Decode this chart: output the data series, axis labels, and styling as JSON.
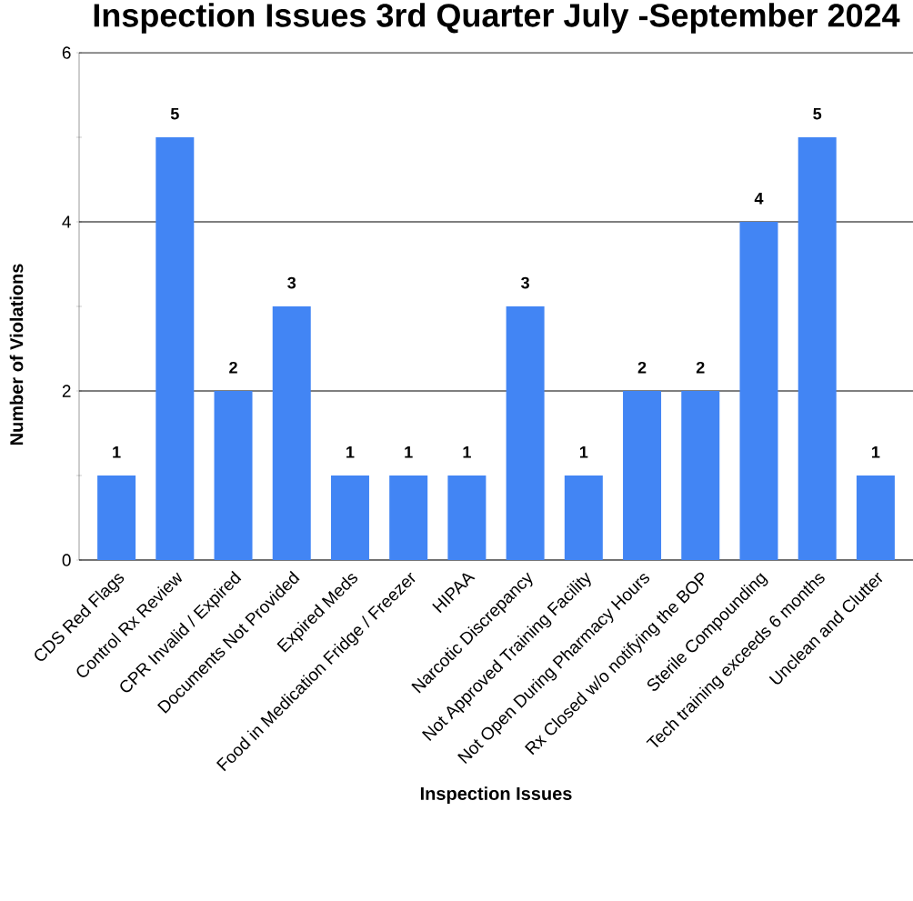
{
  "chart_data": {
    "type": "bar",
    "title": "Inspection Issues 3rd Quarter July -September 2024",
    "xlabel": "Inspection Issues",
    "ylabel": "Number of Violations",
    "categories": [
      "CDS Red Flags",
      "Control Rx Review",
      "CPR Invalid / Expired",
      "Documents Not Provided",
      "Expired Meds",
      "Food in Medication Fridge / Freezer",
      "HIPAA",
      "Narcotic Discrepancy",
      "Not Approved Training Facility",
      "Not Open During Pharmacy Hours",
      "Rx Closed w/o notifying the BOP",
      "Sterile Compounding",
      "Tech training exceeds 6 months",
      "Unclean and Clutter"
    ],
    "values": [
      1,
      5,
      2,
      3,
      1,
      1,
      1,
      3,
      1,
      2,
      2,
      4,
      5,
      1
    ],
    "color": "#4285f4",
    "ylim": [
      0,
      6
    ],
    "yticks": [
      0,
      {
        "value": 1,
        "label": null
      },
      2,
      {
        "value": 3,
        "label": null
      },
      4,
      {
        "value": 5,
        "label": null
      },
      6
    ],
    "grid": "y",
    "data_labels": true
  }
}
